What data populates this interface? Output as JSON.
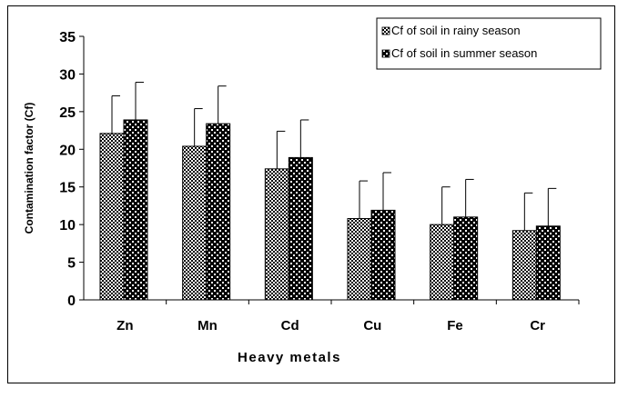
{
  "chart_data": {
    "type": "bar",
    "categories": [
      "Zn",
      "Mn",
      "Cd",
      "Cu",
      "Fe",
      "Cr"
    ],
    "series": [
      {
        "name": "Cf of soil in rainy season",
        "values": [
          22.1,
          20.4,
          17.4,
          10.8,
          10.0,
          9.2
        ],
        "errors": [
          5.0,
          5.0,
          5.0,
          5.0,
          5.0,
          5.0
        ]
      },
      {
        "name": "Cf of soil in summer season",
        "values": [
          23.9,
          23.4,
          18.9,
          11.9,
          11.0,
          9.8
        ],
        "errors": [
          5.0,
          5.0,
          5.0,
          5.0,
          5.0,
          5.0
        ]
      }
    ],
    "xlabel": "Heavy metals",
    "ylabel": "Contamination factor (Cf)",
    "ylim": [
      0,
      35
    ],
    "yticks": [
      0,
      5,
      10,
      15,
      20,
      25,
      30,
      35
    ],
    "grid": false,
    "legend_position": "top-right"
  }
}
